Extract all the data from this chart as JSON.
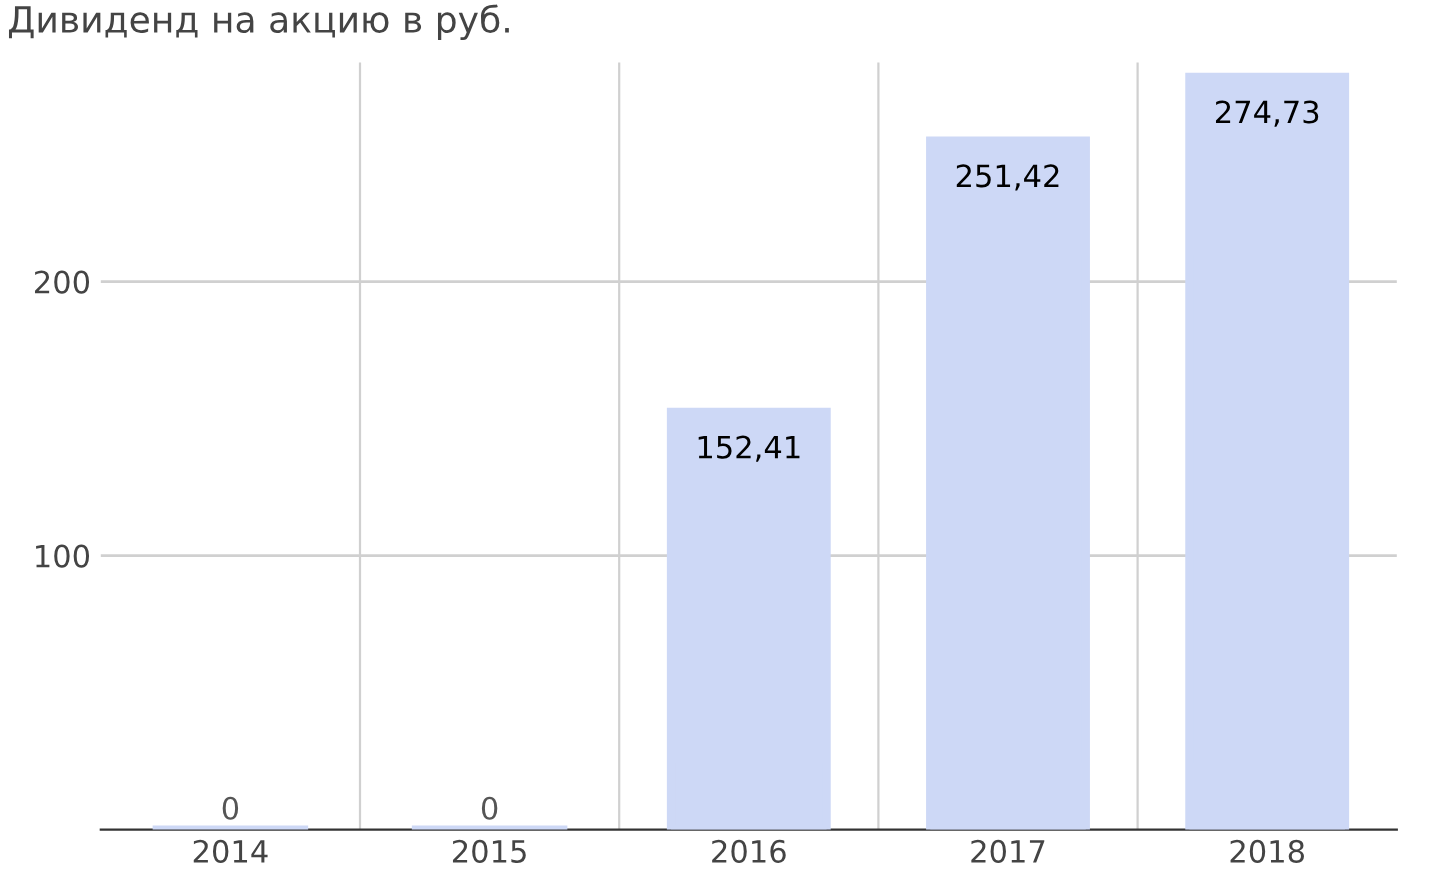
{
  "chart_data": {
    "type": "bar",
    "title": "Дивиденд на акцию в руб.",
    "categories": [
      "2014",
      "2015",
      "2016",
      "2017",
      "2018"
    ],
    "values": [
      0,
      0,
      152.41,
      251.42,
      274.73
    ],
    "value_labels": [
      "0",
      "0",
      "152,41",
      "251,42",
      "274,73"
    ],
    "color": "#cdd8f6",
    "ylim": [
      0,
      280
    ],
    "yticks": [
      100,
      200
    ],
    "grid": true
  }
}
